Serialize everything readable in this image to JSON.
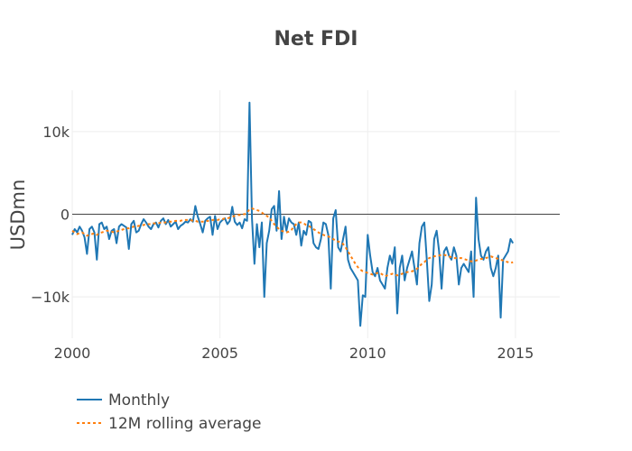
{
  "chart_data": {
    "type": "line",
    "title": "Net FDI",
    "xlabel": "",
    "ylabel": "USDmn",
    "xlim": [
      2000,
      2016.5
    ],
    "ylim": [
      -15000,
      15000
    ],
    "x_ticks": [
      2000,
      2005,
      2010,
      2015
    ],
    "x_tick_labels": [
      "2000",
      "2005",
      "2010",
      "2015"
    ],
    "y_ticks": [
      -10000,
      0,
      10000
    ],
    "y_tick_labels": [
      "−10k",
      "0",
      "10k"
    ],
    "grid": true,
    "legend_position": "bottom-left",
    "x_start": "2000-01",
    "x_step": "1 month",
    "series": [
      {
        "name": "Monthly",
        "color": "#1f77b4",
        "dash": "solid",
        "values": [
          -2500,
          -1800,
          -2200,
          -1500,
          -2000,
          -2800,
          -4800,
          -1800,
          -1500,
          -2200,
          -5500,
          -1200,
          -1000,
          -1800,
          -1500,
          -3000,
          -2000,
          -1800,
          -3500,
          -1500,
          -1200,
          -1400,
          -1600,
          -4200,
          -1200,
          -800,
          -2200,
          -2000,
          -1200,
          -600,
          -1000,
          -1500,
          -1800,
          -1200,
          -1000,
          -1600,
          -800,
          -500,
          -1200,
          -700,
          -1500,
          -1200,
          -900,
          -1800,
          -1400,
          -1200,
          -900,
          -1000,
          -600,
          -900,
          1000,
          -300,
          -1200,
          -2200,
          -800,
          -500,
          -300,
          -2500,
          -200,
          -1800,
          -1000,
          -700,
          -500,
          -1200,
          -800,
          900,
          -900,
          -1300,
          -1000,
          -1700,
          -600,
          -800,
          13500,
          -500,
          -6000,
          -1200,
          -4000,
          -1000,
          -10000,
          -3500,
          -2000,
          600,
          1000,
          -2000,
          2800,
          -3000,
          -300,
          -2000,
          -500,
          -1000,
          -1200,
          -2500,
          -1000,
          -3800,
          -2000,
          -2500,
          -800,
          -1000,
          -3500,
          -4000,
          -4200,
          -3000,
          -1000,
          -1200,
          -2500,
          -9000,
          -500,
          500,
          -4000,
          -4500,
          -3000,
          -1500,
          -5500,
          -6500,
          -7000,
          -7500,
          -8000,
          -13500,
          -9800,
          -10000,
          -2500,
          -5000,
          -7000,
          -7500,
          -6500,
          -8000,
          -8500,
          -9000,
          -6500,
          -5000,
          -6000,
          -4000,
          -12000,
          -6500,
          -5000,
          -8000,
          -6500,
          -5500,
          -4500,
          -6500,
          -8500,
          -3500,
          -1500,
          -1000,
          -5500,
          -10500,
          -8500,
          -3000,
          -2000,
          -4500,
          -9000,
          -4500,
          -4000,
          -5000,
          -5500,
          -4000,
          -5000,
          -8500,
          -6500,
          -6000,
          -6500,
          -7000,
          -4500,
          -10000,
          2000,
          -3000,
          -5000,
          -5500,
          -4500,
          -4000,
          -6500,
          -7500,
          -6500,
          -5000,
          -12500,
          -5500,
          -5000,
          -4500,
          -3000,
          -3500
        ]
      },
      {
        "name": "12M rolling average",
        "color": "#ff7f0e",
        "dash": "dotted",
        "values": [
          -2000,
          -2200,
          -2400,
          -2300,
          -2200,
          -2400,
          -2600,
          -2500,
          -2400,
          -2300,
          -2500,
          -2300,
          -2200,
          -2100,
          -2000,
          -2000,
          -2100,
          -2200,
          -2100,
          -2000,
          -1900,
          -1800,
          -1700,
          -1700,
          -1600,
          -1500,
          -1500,
          -1400,
          -1400,
          -1300,
          -1200,
          -1200,
          -1200,
          -1100,
          -1100,
          -1100,
          -1000,
          -1000,
          -1000,
          -900,
          -900,
          -900,
          -800,
          -800,
          -800,
          -700,
          -700,
          -700,
          -700,
          -800,
          -800,
          -900,
          -900,
          -900,
          -900,
          -800,
          -800,
          -700,
          -700,
          -700,
          -600,
          -600,
          -500,
          -500,
          -400,
          -300,
          -200,
          -100,
          -100,
          0,
          0,
          200,
          600,
          700,
          600,
          500,
          400,
          200,
          0,
          -200,
          -400,
          -800,
          -1200,
          -1500,
          -1800,
          -2000,
          -2100,
          -2200,
          -2100,
          -1900,
          -1500,
          -1200,
          -1000,
          -1000,
          -1100,
          -1300,
          -1400,
          -1600,
          -1800,
          -2000,
          -2200,
          -2400,
          -2500,
          -2600,
          -2700,
          -2800,
          -3000,
          -3200,
          -3300,
          -3400,
          -3600,
          -4000,
          -4500,
          -5000,
          -5500,
          -6000,
          -6400,
          -6700,
          -6900,
          -7000,
          -7100,
          -7200,
          -7300,
          -7200,
          -7100,
          -7100,
          -7300,
          -7500,
          -7400,
          -7300,
          -7200,
          -7300,
          -7400,
          -7300,
          -7200,
          -7100,
          -7000,
          -7000,
          -6900,
          -6800,
          -6600,
          -6300,
          -6000,
          -5800,
          -5500,
          -5300,
          -5200,
          -5100,
          -5000,
          -5000,
          -4900,
          -4900,
          -5000,
          -5100,
          -5200,
          -5300,
          -5300,
          -5300,
          -5300,
          -5400,
          -5500,
          -5600,
          -5700,
          -5700,
          -5600,
          -5500,
          -5400,
          -5400,
          -5300,
          -5200,
          -5100,
          -5200,
          -5300,
          -5400,
          -5500,
          -5600,
          -5700,
          -5800,
          -5900,
          -5800
        ]
      }
    ]
  }
}
